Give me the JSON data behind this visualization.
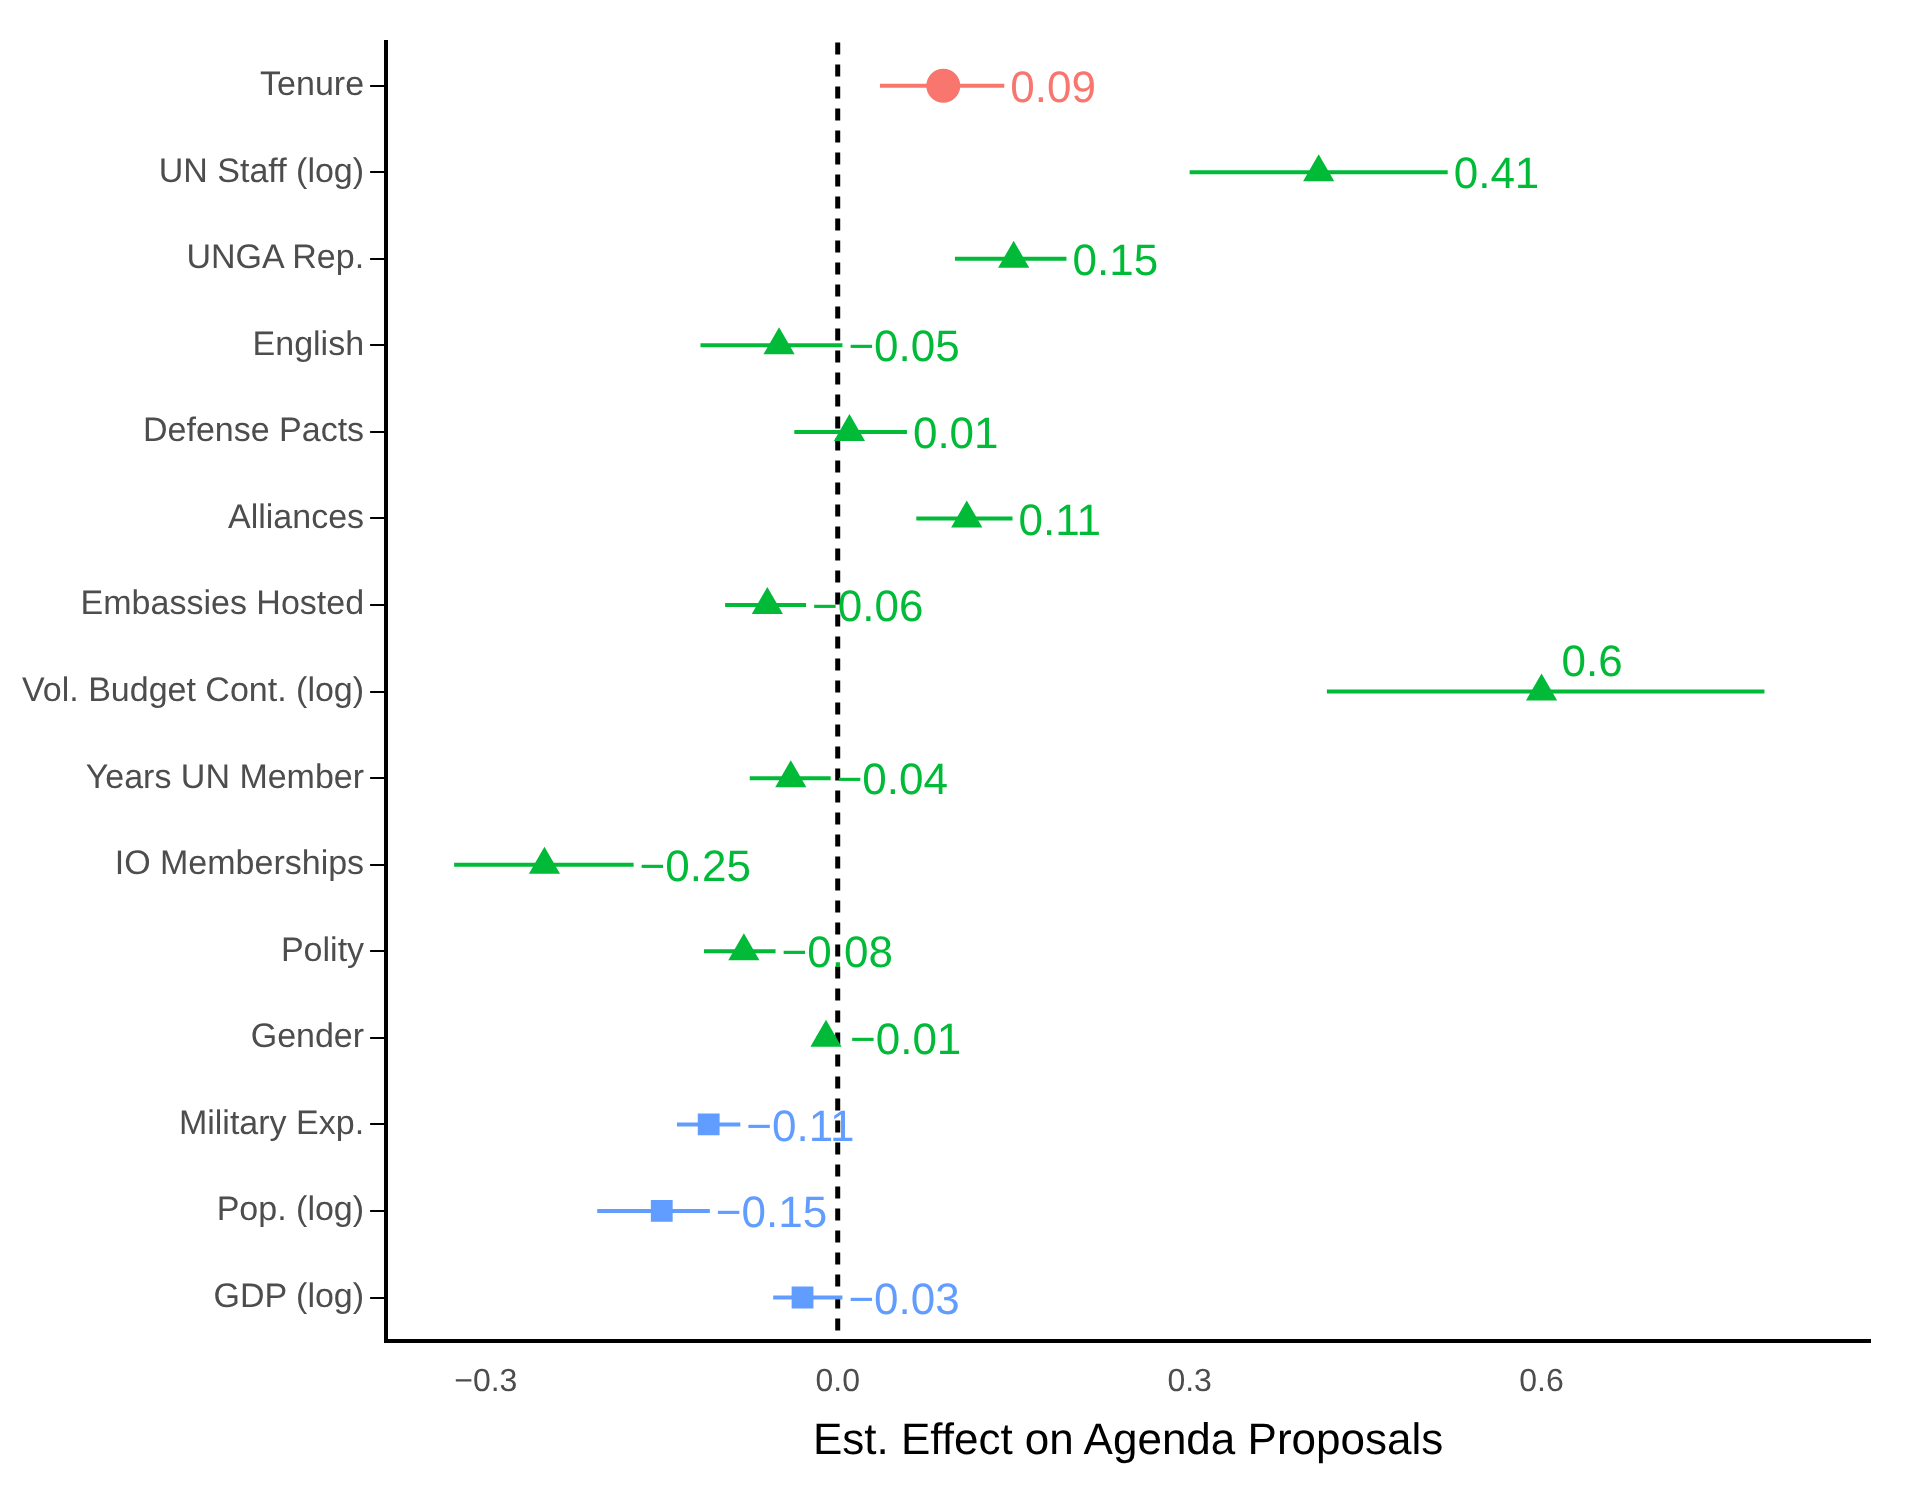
{
  "chart_data": {
    "type": "scatter",
    "orientation": "horizontal",
    "xlabel": "Est. Effect on Agenda Proposals",
    "categories": [
      "Tenure",
      "UN Staff (log)",
      "UNGA Rep.",
      "English",
      "Defense Pacts",
      "Alliances",
      "Embassies Hosted",
      "Vol. Budget Cont. (log)",
      "Years UN Member",
      "IO Memberships",
      "Polity",
      "Gender",
      "Military Exp.",
      "Pop. (log)",
      "GDP (log)"
    ],
    "series": [
      {
        "color": "#f8766d",
        "marker": "circle",
        "values": [
          0.09,
          null,
          null,
          null,
          null,
          null,
          null,
          null,
          null,
          null,
          null,
          null,
          null,
          null,
          null
        ],
        "errors": [
          [
            0.036,
            0.142
          ],
          null,
          null,
          null,
          null,
          null,
          null,
          null,
          null,
          null,
          null,
          null,
          null,
          null,
          null
        ],
        "value_labels": [
          "0.09",
          null,
          null,
          null,
          null,
          null,
          null,
          null,
          null,
          null,
          null,
          null,
          null,
          null,
          null
        ]
      },
      {
        "color": "#00ba38",
        "marker": "triangle",
        "values": [
          null,
          0.41,
          0.15,
          -0.05,
          0.01,
          0.11,
          -0.06,
          0.6,
          -0.04,
          -0.25,
          -0.08,
          -0.01,
          null,
          null,
          null
        ],
        "errors": [
          null,
          [
            0.3,
            0.52
          ],
          [
            0.1,
            0.195
          ],
          [
            -0.117,
            0.004
          ],
          [
            -0.037,
            0.059
          ],
          [
            0.067,
            0.149
          ],
          [
            -0.096,
            -0.027
          ],
          [
            0.417,
            0.79
          ],
          [
            -0.075,
            -0.006
          ],
          [
            -0.327,
            -0.174
          ],
          [
            -0.114,
            -0.053
          ],
          [
            -0.018,
            -0.002
          ],
          null,
          null,
          null
        ],
        "value_labels": [
          null,
          "0.41",
          "0.15",
          "−0.05",
          "0.01",
          "0.11",
          "−0.06",
          "0.6",
          "−0.04",
          "−0.25",
          "−0.08",
          "−0.01",
          null,
          null,
          null
        ]
      },
      {
        "color": "#619cff",
        "marker": "square",
        "values": [
          null,
          null,
          null,
          null,
          null,
          null,
          null,
          null,
          null,
          null,
          null,
          null,
          -0.11,
          -0.15,
          -0.03
        ],
        "errors": [
          null,
          null,
          null,
          null,
          null,
          null,
          null,
          null,
          null,
          null,
          null,
          null,
          [
            -0.137,
            -0.083
          ],
          [
            -0.205,
            -0.109
          ],
          [
            -0.055,
            0.004
          ]
        ],
        "value_labels": [
          null,
          null,
          null,
          null,
          null,
          null,
          null,
          null,
          null,
          null,
          null,
          null,
          "−0.11",
          "−0.15",
          "−0.03"
        ]
      }
    ],
    "xlim": [
      -0.385,
      0.88
    ],
    "xticks": [
      {
        "value": -0.3,
        "label": "−0.3"
      },
      {
        "value": 0,
        "label": "0.0"
      },
      {
        "value": 0.3,
        "label": "0.3"
      },
      {
        "value": 0.6,
        "label": "0.6"
      }
    ],
    "ref_lines": [
      {
        "axis": "x",
        "value": 0,
        "color": "#000000",
        "line_style": "dashed"
      }
    ],
    "grid": false,
    "legend": false
  }
}
